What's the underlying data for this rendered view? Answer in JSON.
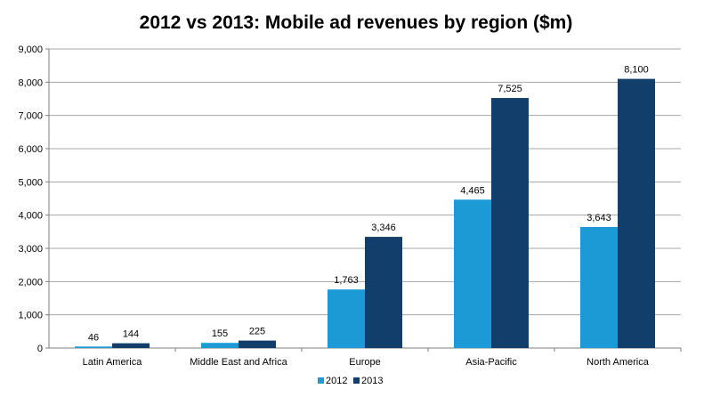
{
  "chart_data": {
    "type": "bar",
    "title": "2012 vs 2013: Mobile ad revenues by region ($m)",
    "xlabel": "",
    "ylabel": "",
    "categories": [
      "Latin America",
      "Middle East and Africa",
      "Europe",
      "Asia-Pacific",
      "North America"
    ],
    "series": [
      {
        "name": "2012",
        "values": [
          46,
          155,
          1763,
          4465,
          3643
        ],
        "labels": [
          "46",
          "155",
          "1,763",
          "4,465",
          "3,643"
        ],
        "color": "#1b9ad6"
      },
      {
        "name": "2013",
        "values": [
          144,
          225,
          3346,
          7525,
          8100
        ],
        "labels": [
          "144",
          "225",
          "3,346",
          "7,525",
          "8,100"
        ],
        "color": "#123e6b"
      }
    ],
    "ylim": [
      0,
      9000
    ],
    "yticks": [
      0,
      1000,
      2000,
      3000,
      4000,
      5000,
      6000,
      7000,
      8000,
      9000
    ],
    "ytick_labels": [
      "0",
      "1,000",
      "2,000",
      "3,000",
      "4,000",
      "5,000",
      "6,000",
      "7,000",
      "8,000",
      "9,000"
    ],
    "grid": true,
    "legend_position": "bottom-center"
  }
}
